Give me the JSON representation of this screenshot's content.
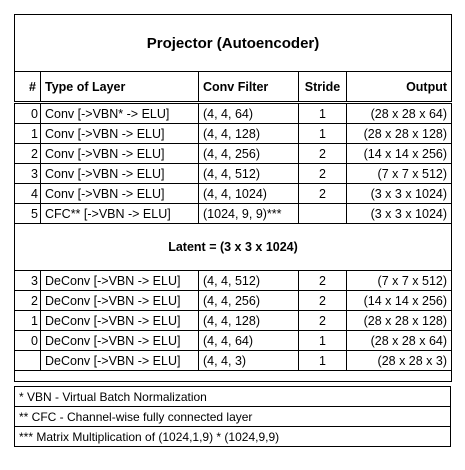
{
  "title": "Projector (Autoencoder)",
  "headers": {
    "num": "#",
    "type": "Type of Layer",
    "filter": "Conv Filter",
    "stride": "Stride",
    "output": "Output"
  },
  "encoder_rows": [
    {
      "num": "0",
      "type": "Conv [->VBN* -> ELU]",
      "filter": "(4, 4, 64)",
      "stride": "1",
      "output": "(28 x 28 x 64)"
    },
    {
      "num": "1",
      "type": "Conv [->VBN -> ELU]",
      "filter": "(4, 4, 128)",
      "stride": "1",
      "output": "(28 x 28 x 128)"
    },
    {
      "num": "2",
      "type": "Conv [->VBN -> ELU]",
      "filter": "(4, 4, 256)",
      "stride": "2",
      "output": "(14 x 14 x 256)"
    },
    {
      "num": "3",
      "type": "Conv [->VBN -> ELU]",
      "filter": "(4, 4, 512)",
      "stride": "2",
      "output": "(7 x 7 x 512)"
    },
    {
      "num": "4",
      "type": "Conv [->VBN -> ELU]",
      "filter": "(4, 4, 1024)",
      "stride": "2",
      "output": "(3 x 3 x 1024)"
    },
    {
      "num": "5",
      "type": "CFC** [->VBN -> ELU]",
      "filter": "(1024, 9, 9)***",
      "stride": "",
      "output": "(3 x 3 x 1024)"
    }
  ],
  "latent": "Latent = (3 x 3 x 1024)",
  "decoder_rows": [
    {
      "num": "3",
      "type": "DeConv [->VBN -> ELU]",
      "filter": "(4, 4, 512)",
      "stride": "2",
      "output": "(7 x 7 x 512)"
    },
    {
      "num": "2",
      "type": "DeConv [->VBN -> ELU]",
      "filter": "(4, 4, 256)",
      "stride": "2",
      "output": "(14 x 14 x 256)"
    },
    {
      "num": "1",
      "type": "DeConv [->VBN -> ELU]",
      "filter": "(4, 4, 128)",
      "stride": "2",
      "output": "(28 x 28 x 128)"
    },
    {
      "num": "0",
      "type": "DeConv [->VBN -> ELU]",
      "filter": "(4, 4, 64)",
      "stride": "1",
      "output": "(28 x 28 x 64)"
    },
    {
      "num": "",
      "type": "DeConv [->VBN -> ELU]",
      "filter": "(4, 4, 3)",
      "stride": "1",
      "output": "(28 x 28 x 3)"
    }
  ],
  "notes": [
    "* VBN - Virtual Batch Normalization",
    "** CFC - Channel-wise fully connected layer",
    "*** Matrix Multiplication of (1024,1,9) * (1024,9,9)"
  ]
}
